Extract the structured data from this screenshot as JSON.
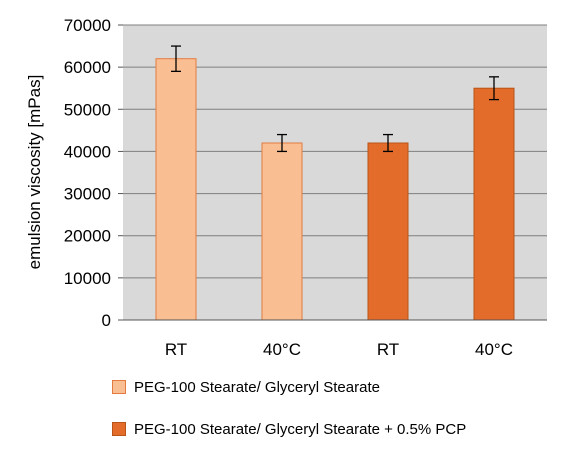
{
  "chart_data": {
    "type": "bar",
    "categories": [
      "RT",
      "40°C",
      "RT",
      "40°C"
    ],
    "ylabel": "emulsion viscosity [mPas]",
    "ylim": [
      0,
      70000
    ],
    "yticks": [
      "0",
      "10000",
      "20000",
      "30000",
      "40000",
      "50000",
      "60000",
      "70000"
    ],
    "grid": true,
    "legend_position": "bottom",
    "series": [
      {
        "name": "PEG-100 Stearate/ Glyceryl Stearate",
        "color": "#f9bf92",
        "stroke": "#e47a40",
        "points": [
          {
            "category_index": 0,
            "value": 62000,
            "error": 3000
          },
          {
            "category_index": 1,
            "value": 42000,
            "error": 2000
          }
        ]
      },
      {
        "name": "PEG-100 Stearate/ Glyceryl Stearate + 0.5% PCP",
        "color": "#e46c2a",
        "stroke": "#b85418",
        "points": [
          {
            "category_index": 2,
            "value": 42000,
            "error": 2000
          },
          {
            "category_index": 3,
            "value": 55000,
            "error": 2700
          }
        ]
      }
    ]
  }
}
